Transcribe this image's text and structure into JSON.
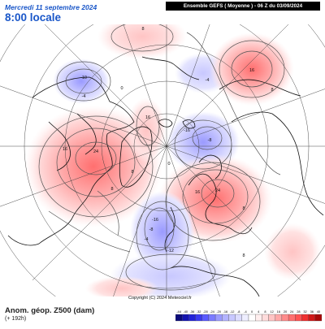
{
  "header": {
    "date": "Mercredi 11 septembre 2024",
    "time": "8:00 locale",
    "model_info": "Ensemble GEFS ( Moyenne ) - 06 Z du 03/09/2024"
  },
  "footer": {
    "title": "Anom. géop. Z500 (dam)",
    "forecast_hour": "(+ 192h)",
    "copyright": "Copyright (C) 2024 Meteociel.fr"
  },
  "legend": {
    "values": [
      "-44",
      "-40",
      "-36",
      "-32",
      "-28",
      "-24",
      "-20",
      "-16",
      "-12",
      "-8",
      "-4",
      "0",
      "4",
      "8",
      "12",
      "16",
      "20",
      "24",
      "28",
      "32",
      "36",
      "40"
    ],
    "colors": [
      "#0b0b7a",
      "#1414b0",
      "#2323d8",
      "#3b3bf0",
      "#5a5aff",
      "#7b7bff",
      "#9a9aff",
      "#b3b3ff",
      "#c8c8ff",
      "#dcdcff",
      "#eeeeff",
      "#ffffff",
      "#ffeeee",
      "#ffdcdc",
      "#ffc4c4",
      "#ffa8a8",
      "#ff8c8c",
      "#ff6f6f",
      "#ff5252",
      "#f03030",
      "#d01818",
      "#a80808"
    ]
  },
  "map": {
    "contour_labels": {
      "pos_north_pacific": "8",
      "neg_alaska": "-10",
      "neg_alaska_mid": "-4",
      "pos_canada_center": "24",
      "pos_canada_outer": "16",
      "pos_canada_inner": "8",
      "pos_greenland": "16",
      "pos_greenland_outer": "8",
      "pos_greenland_inner": "0",
      "pos_hudson": "0",
      "neg_arctic": "-8",
      "neg_arctic_outer": "-16",
      "neg_siberia": "-4",
      "pos_siberia": "16",
      "pos_siberia_inner": "8",
      "pos_europe_center": "24",
      "pos_europe_outer": "16",
      "pos_europe_inner": "8",
      "neg_atlantic": "-16",
      "neg_atlantic_2": "-8",
      "neg_atlantic_3": "-4",
      "neg_atlantic_4": "-12",
      "pos_mediterranean": "8"
    }
  }
}
